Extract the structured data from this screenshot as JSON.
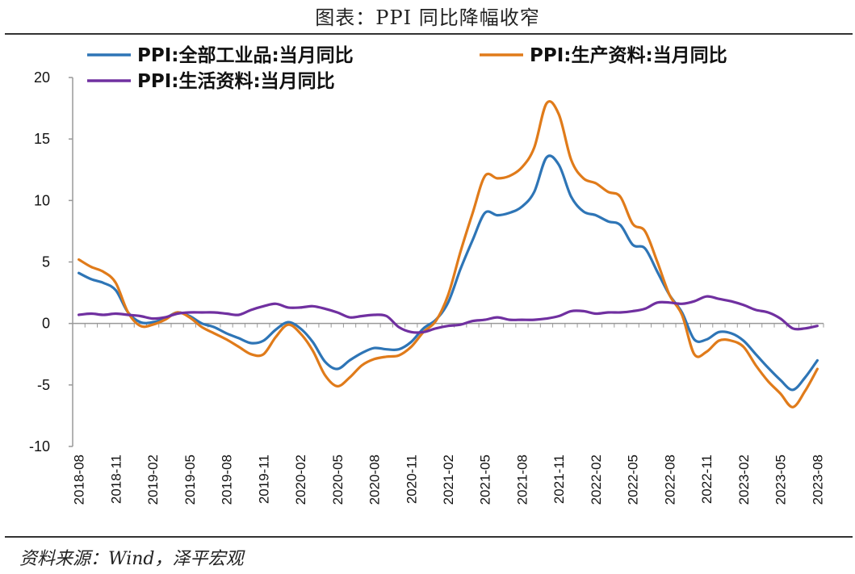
{
  "header": {
    "title": "图表：PPI 同比降幅收窄"
  },
  "footer": {
    "source": "资料来源：Wind，泽平宏观"
  },
  "chart_data": {
    "type": "line",
    "title": "图表：PPI 同比降幅收窄",
    "xlabel": "",
    "ylabel": "",
    "ylim": [
      -10,
      20
    ],
    "yticks": [
      20,
      15,
      10,
      5,
      0,
      -5,
      -10
    ],
    "grid": false,
    "legend_position": "top",
    "x_tick_labels": [
      "2018-08",
      "2018-11",
      "2019-02",
      "2019-05",
      "2019-08",
      "2019-11",
      "2020-02",
      "2020-05",
      "2020-08",
      "2020-11",
      "2021-02",
      "2021-05",
      "2021-08",
      "2021-11",
      "2022-02",
      "2022-05",
      "2022-08",
      "2022-11",
      "2023-02",
      "2023-05",
      "2023-08"
    ],
    "x": [
      "2018-08",
      "2018-09",
      "2018-10",
      "2018-11",
      "2018-12",
      "2019-01",
      "2019-02",
      "2019-03",
      "2019-04",
      "2019-05",
      "2019-06",
      "2019-07",
      "2019-08",
      "2019-09",
      "2019-10",
      "2019-11",
      "2019-12",
      "2020-01",
      "2020-02",
      "2020-03",
      "2020-04",
      "2020-05",
      "2020-06",
      "2020-07",
      "2020-08",
      "2020-09",
      "2020-10",
      "2020-11",
      "2020-12",
      "2021-01",
      "2021-02",
      "2021-03",
      "2021-04",
      "2021-05",
      "2021-06",
      "2021-07",
      "2021-08",
      "2021-09",
      "2021-10",
      "2021-11",
      "2021-12",
      "2022-01",
      "2022-02",
      "2022-03",
      "2022-04",
      "2022-05",
      "2022-06",
      "2022-07",
      "2022-08",
      "2022-09",
      "2022-10",
      "2022-11",
      "2022-12",
      "2023-01",
      "2023-02",
      "2023-03",
      "2023-04",
      "2023-05",
      "2023-06",
      "2023-07",
      "2023-08"
    ],
    "series": [
      {
        "name": "PPI:全部工业品:当月同比",
        "color": "#2e75b6",
        "values": [
          4.1,
          3.6,
          3.3,
          2.7,
          0.9,
          0.1,
          0.1,
          0.4,
          0.9,
          0.6,
          0.0,
          -0.3,
          -0.8,
          -1.2,
          -1.6,
          -1.4,
          -0.5,
          0.1,
          -0.4,
          -1.5,
          -3.1,
          -3.7,
          -3.0,
          -2.4,
          -2.0,
          -2.1,
          -2.1,
          -1.5,
          -0.4,
          0.3,
          1.7,
          4.4,
          6.8,
          9.0,
          8.8,
          9.0,
          9.5,
          10.7,
          13.5,
          12.9,
          10.3,
          9.1,
          8.8,
          8.3,
          8.0,
          6.4,
          6.1,
          4.2,
          2.3,
          0.9,
          -1.3,
          -1.3,
          -0.7,
          -0.8,
          -1.4,
          -2.5,
          -3.6,
          -4.6,
          -5.4,
          -4.4,
          -3.0
        ]
      },
      {
        "name": "PPI:生产资料:当月同比",
        "color": "#e07b1a",
        "values": [
          5.2,
          4.6,
          4.2,
          3.3,
          0.9,
          -0.2,
          -0.1,
          0.3,
          0.9,
          0.5,
          -0.3,
          -0.8,
          -1.3,
          -1.9,
          -2.5,
          -2.5,
          -1.1,
          -0.1,
          -0.8,
          -2.2,
          -4.2,
          -5.1,
          -4.4,
          -3.4,
          -2.9,
          -2.7,
          -2.6,
          -1.9,
          -0.7,
          0.2,
          2.3,
          5.8,
          9.0,
          12.0,
          11.8,
          12.0,
          12.7,
          14.3,
          17.9,
          17.0,
          13.3,
          11.8,
          11.4,
          10.7,
          10.3,
          8.1,
          7.5,
          5.0,
          2.3,
          0.7,
          -2.5,
          -2.3,
          -1.4,
          -1.4,
          -1.9,
          -3.4,
          -4.7,
          -5.7,
          -6.8,
          -5.5,
          -3.7
        ]
      },
      {
        "name": "PPI:生活资料:当月同比",
        "color": "#7030a0",
        "values": [
          0.7,
          0.8,
          0.7,
          0.8,
          0.7,
          0.6,
          0.4,
          0.5,
          0.8,
          0.9,
          0.9,
          0.9,
          0.8,
          0.7,
          1.1,
          1.4,
          1.6,
          1.3,
          1.3,
          1.4,
          1.2,
          0.9,
          0.5,
          0.6,
          0.7,
          0.6,
          -0.3,
          -0.7,
          -0.7,
          -0.4,
          -0.2,
          -0.1,
          0.2,
          0.3,
          0.5,
          0.3,
          0.3,
          0.3,
          0.4,
          0.6,
          1.0,
          1.0,
          0.8,
          0.9,
          0.9,
          1.0,
          1.2,
          1.7,
          1.7,
          1.6,
          1.8,
          2.2,
          2.0,
          1.8,
          1.5,
          1.1,
          0.9,
          0.4,
          -0.4,
          -0.4,
          -0.2
        ]
      }
    ]
  }
}
